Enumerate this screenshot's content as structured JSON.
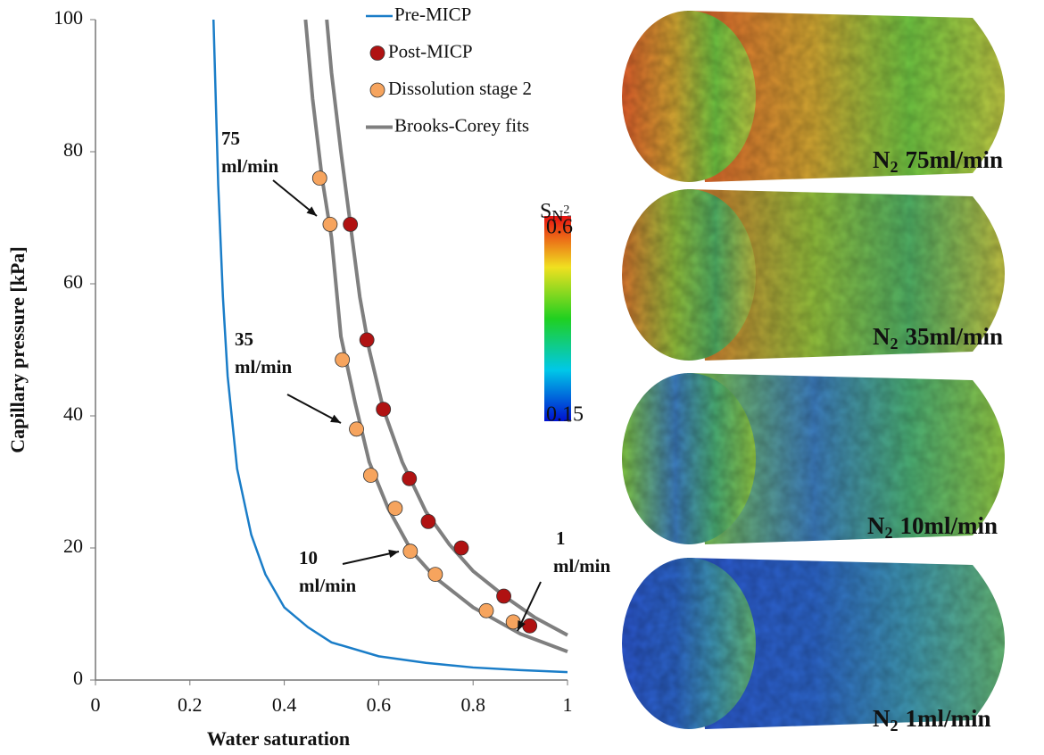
{
  "chart_data": {
    "type": "line",
    "xlabel": "Water saturation",
    "ylabel": "Capillary pressure [kPa]",
    "xlim": [
      0,
      1
    ],
    "ylim": [
      0,
      100
    ],
    "xticks": [
      0,
      0.2,
      0.4,
      0.6,
      0.8,
      1
    ],
    "yticks": [
      0,
      20,
      40,
      60,
      80,
      100
    ],
    "series": [
      {
        "name": "Pre-MICP",
        "color": "#1a7dc8",
        "mode": "line",
        "x": [
          0.25,
          0.26,
          0.27,
          0.28,
          0.3,
          0.33,
          0.36,
          0.4,
          0.45,
          0.5,
          0.6,
          0.7,
          0.8,
          0.9,
          1
        ],
        "values": [
          100,
          75,
          58,
          46,
          32,
          22,
          16,
          11,
          8,
          5.7,
          3.6,
          2.6,
          1.9,
          1.5,
          1.2
        ]
      },
      {
        "name": "Post-MICP",
        "color": "#b01212",
        "mode": "markers",
        "x": [
          0.54,
          0.575,
          0.61,
          0.665,
          0.705,
          0.775,
          0.865,
          0.92
        ],
        "values": [
          69,
          51.5,
          41,
          30.5,
          24,
          20,
          12.7,
          8.2
        ]
      },
      {
        "name": "Dissolution stage 2",
        "color": "#f6a45e",
        "mode": "markers",
        "x": [
          0.475,
          0.497,
          0.523,
          0.553,
          0.583,
          0.635,
          0.667,
          0.72,
          0.828,
          0.885
        ],
        "values": [
          76,
          69,
          48.5,
          38,
          31,
          26,
          19.5,
          16,
          10.5,
          8.8
        ]
      },
      {
        "name": "Brooks-Corey fits",
        "color": "#7f7f7f",
        "mode": "lines",
        "lines": [
          {
            "x": [
              0.445,
              0.46,
              0.48,
              0.5,
              0.52,
              0.55,
              0.58,
              0.62,
              0.67,
              0.72,
              0.8,
              0.9,
              1
            ],
            "values": [
              100,
              88,
              76,
              67,
              52,
              42,
              33,
              26,
              19.5,
              15.5,
              11,
              7,
              4.3
            ]
          },
          {
            "x": [
              0.49,
              0.5,
              0.52,
              0.54,
              0.56,
              0.58,
              0.61,
              0.65,
              0.7,
              0.75,
              0.8,
              0.87,
              0.93,
              1
            ],
            "values": [
              100,
              92,
              80,
              69,
              58,
              50,
              41,
              33,
              25.5,
              20.5,
              16.5,
              12.5,
              9.5,
              6.8
            ]
          }
        ]
      }
    ],
    "annotations": [
      {
        "lines": [
          "75",
          "ml/min"
        ]
      },
      {
        "lines": [
          "35",
          "ml/min"
        ]
      },
      {
        "lines": [
          "10",
          "ml/min"
        ]
      },
      {
        "lines": [
          "1",
          "ml/min"
        ]
      }
    ],
    "colorbar": {
      "label": "S",
      "label_sub": "N",
      "label_sub2": "2",
      "ticks": [
        0.15,
        0.6
      ]
    },
    "panels": [
      {
        "gas": "N",
        "sub": "2",
        "rate": "75ml/min"
      },
      {
        "gas": "N",
        "sub": "2",
        "rate": "35ml/min"
      },
      {
        "gas": "N",
        "sub": "2",
        "rate": "10ml/min"
      },
      {
        "gas": "N",
        "sub": "2",
        "rate": "1ml/min"
      }
    ]
  }
}
